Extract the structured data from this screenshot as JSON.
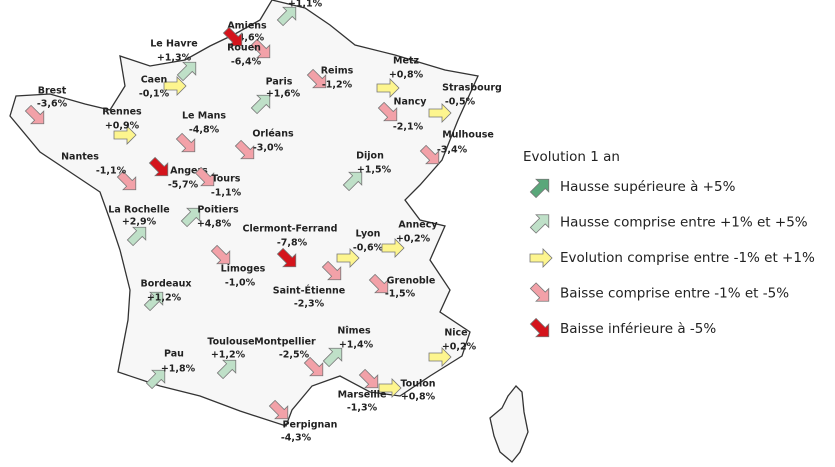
{
  "cities": [
    {
      "change": "+1,1%",
      "color": "#bfe0c8"
    },
    {
      "name": "Amiens",
      "change": "-4,6%",
      "color": "#f2a1a8"
    },
    {
      "name": "Rouen",
      "change": "-6,4%",
      "color": "#d4141c"
    },
    {
      "name": "Le Havre",
      "change": "+1,3%",
      "color": "#bfe0c8"
    },
    {
      "name": "Caen",
      "change": "-0,1%",
      "color": "#fdf58e"
    },
    {
      "name": "Paris",
      "change": "+1,6%",
      "color": "#bfe0c8"
    },
    {
      "name": "Reims",
      "change": "-1,2%",
      "color": "#f2a1a8"
    },
    {
      "name": "Metz",
      "change": "+0,8%",
      "color": "#fdf58e"
    },
    {
      "name": "Strasbourg",
      "change": "-0,5%",
      "color": "#fdf58e"
    },
    {
      "name": "Nancy",
      "change": "-2,1%",
      "color": "#f2a1a8"
    },
    {
      "name": "Brest",
      "change": "-3,6%",
      "color": "#f2a1a8"
    },
    {
      "name": "Rennes",
      "change": "+0,9%",
      "color": "#fdf58e"
    },
    {
      "name": "Le Mans",
      "change": "-4,8%",
      "color": "#f2a1a8"
    },
    {
      "name": "Orléans",
      "change": "-3,0%",
      "color": "#f2a1a8"
    },
    {
      "name": "Mulhouse",
      "change": "-3,4%",
      "color": "#f2a1a8"
    },
    {
      "name": "Dijon",
      "change": "+1,5%",
      "color": "#bfe0c8"
    },
    {
      "name": "Nantes",
      "change": "-1,1%",
      "color": "#f2a1a8"
    },
    {
      "name": "Angers",
      "change": "-5,7%",
      "color": "#d4141c"
    },
    {
      "name": "Tours",
      "change": "-1,1%",
      "color": "#f2a1a8"
    },
    {
      "name": "La Rochelle",
      "change": "+2,9%",
      "color": "#bfe0c8"
    },
    {
      "name": "Poitiers",
      "change": "+4,8%",
      "color": "#bfe0c8"
    },
    {
      "name": "Clermont-Ferrand",
      "change": "-7,8%",
      "color": "#d4141c"
    },
    {
      "name": "Lyon",
      "change": "-0,6%",
      "color": "#fdf58e"
    },
    {
      "name": "Annecy",
      "change": "+0,2%",
      "color": "#fdf58e"
    },
    {
      "name": "Limoges",
      "change": "-1,0%",
      "color": "#f2a1a8"
    },
    {
      "name": "Grenoble",
      "change": "-1,5%",
      "color": "#f2a1a8"
    },
    {
      "name": "Saint-Étienne",
      "change": "-2,3%",
      "color": "#f2a1a8"
    },
    {
      "name": "Bordeaux",
      "change": "+1,2%",
      "color": "#bfe0c8"
    },
    {
      "name": "Nîmes",
      "change": "+1,4%",
      "color": "#bfe0c8"
    },
    {
      "name": "Nice",
      "change": "+0,2%",
      "color": "#fdf58e"
    },
    {
      "name": "Toulouse",
      "change": "+1,2%",
      "color": "#bfe0c8"
    },
    {
      "name": "Montpellier",
      "change": "-2,5%",
      "color": "#f2a1a8"
    },
    {
      "name": "Pau",
      "change": "+1,8%",
      "color": "#bfe0c8"
    },
    {
      "name": "Toulon",
      "change": "+0,8%",
      "color": "#fdf58e"
    },
    {
      "name": "Marseille",
      "change": "-1,3%",
      "color": "#f2a1a8"
    },
    {
      "name": "Perpignan",
      "change": "-4,3%",
      "color": "#f2a1a8"
    }
  ],
  "legend": {
    "title": "Evolution 1 an",
    "items": [
      {
        "label": "Hausse supérieure à +5%",
        "color": "#5aa77a"
      },
      {
        "label": "Hausse comprise entre +1% et +5%",
        "color": "#bfe0c8"
      },
      {
        "label": "Evolution comprise entre -1% et +1%",
        "color": "#fdf58e"
      },
      {
        "label": "Baisse comprise entre -1% et -5%",
        "color": "#f2a1a8"
      },
      {
        "label": "Baisse inférieure à -5%",
        "color": "#d4141c"
      }
    ]
  }
}
